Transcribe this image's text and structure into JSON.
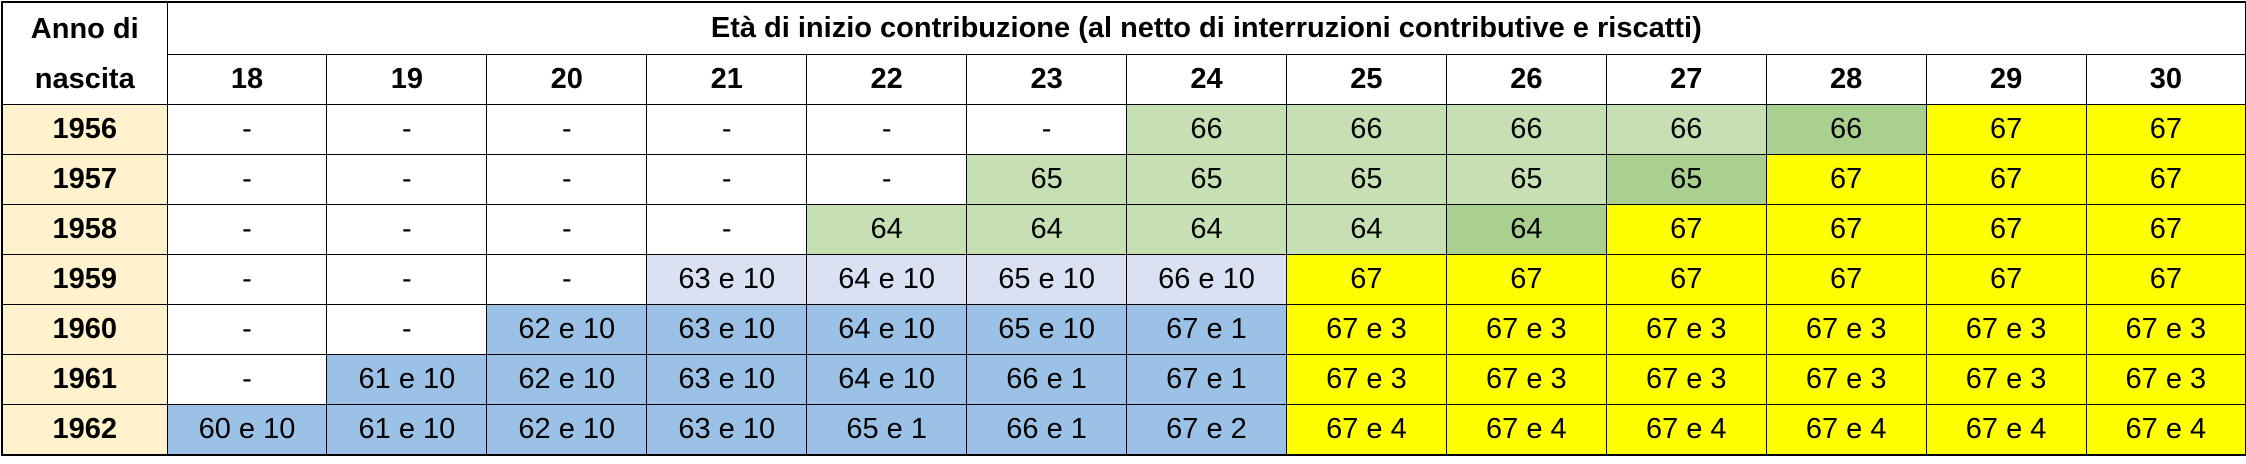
{
  "table": {
    "corner": "Anno di nascita",
    "title": "Età di inizio contribuzione (al netto di interruzioni contributive e riscatti)",
    "year_color": "#fff2cc",
    "ages": [
      "18",
      "19",
      "20",
      "21",
      "22",
      "23",
      "24",
      "25",
      "26",
      "27",
      "28",
      "29",
      "30"
    ],
    "rows": [
      {
        "year": "1956",
        "cells": [
          "-",
          "-",
          "-",
          "-",
          "-",
          "-",
          "66",
          "66",
          "66",
          "66",
          "66",
          "67",
          "67"
        ],
        "colors": [
          "#ffffff",
          "#ffffff",
          "#ffffff",
          "#ffffff",
          "#ffffff",
          "#ffffff",
          "#c6e0b4",
          "#c6e0b4",
          "#c6e0b4",
          "#c6e0b4",
          "#a9d08e",
          "#ffff00",
          "#ffff00"
        ]
      },
      {
        "year": "1957",
        "cells": [
          "-",
          "-",
          "-",
          "-",
          "-",
          "65",
          "65",
          "65",
          "65",
          "65",
          "67",
          "67",
          "67"
        ],
        "colors": [
          "#ffffff",
          "#ffffff",
          "#ffffff",
          "#ffffff",
          "#ffffff",
          "#c6e0b4",
          "#c6e0b4",
          "#c6e0b4",
          "#c6e0b4",
          "#a9d08e",
          "#ffff00",
          "#ffff00",
          "#ffff00"
        ]
      },
      {
        "year": "1958",
        "cells": [
          "-",
          "-",
          "-",
          "-",
          "64",
          "64",
          "64",
          "64",
          "64",
          "67",
          "67",
          "67",
          "67"
        ],
        "colors": [
          "#ffffff",
          "#ffffff",
          "#ffffff",
          "#ffffff",
          "#c6e0b4",
          "#c6e0b4",
          "#c6e0b4",
          "#c6e0b4",
          "#a9d08e",
          "#ffff00",
          "#ffff00",
          "#ffff00",
          "#ffff00"
        ]
      },
      {
        "year": "1959",
        "cells": [
          "-",
          "-",
          "-",
          "63 e 10",
          "64 e 10",
          "65 e 10",
          "66 e 10",
          "67",
          "67",
          "67",
          "67",
          "67",
          "67"
        ],
        "colors": [
          "#ffffff",
          "#ffffff",
          "#ffffff",
          "#d9e1f2",
          "#d9e1f2",
          "#d9e1f2",
          "#d9e1f2",
          "#ffff00",
          "#ffff00",
          "#ffff00",
          "#ffff00",
          "#ffff00",
          "#ffff00"
        ]
      },
      {
        "year": "1960",
        "cells": [
          "-",
          "-",
          "62 e 10",
          "63 e 10",
          "64 e 10",
          "65 e 10",
          "67 e 1",
          "67 e 3",
          "67 e 3",
          "67 e 3",
          "67 e 3",
          "67 e 3",
          "67 e 3"
        ],
        "colors": [
          "#ffffff",
          "#ffffff",
          "#9bc2e6",
          "#9bc2e6",
          "#9bc2e6",
          "#9bc2e6",
          "#9bc2e6",
          "#ffff00",
          "#ffff00",
          "#ffff00",
          "#ffff00",
          "#ffff00",
          "#ffff00"
        ]
      },
      {
        "year": "1961",
        "cells": [
          "-",
          "61 e 10",
          "62 e 10",
          "63 e 10",
          "64 e 10",
          "66 e 1",
          "67 e 1",
          "67 e 3",
          "67 e 3",
          "67 e 3",
          "67 e 3",
          "67 e 3",
          "67 e 3"
        ],
        "colors": [
          "#ffffff",
          "#9bc2e6",
          "#9bc2e6",
          "#9bc2e6",
          "#9bc2e6",
          "#9bc2e6",
          "#9bc2e6",
          "#ffff00",
          "#ffff00",
          "#ffff00",
          "#ffff00",
          "#ffff00",
          "#ffff00"
        ]
      },
      {
        "year": "1962",
        "cells": [
          "60 e 10",
          "61 e 10",
          "62 e 10",
          "63 e 10",
          "65 e 1",
          "66 e 1",
          "67 e 2",
          "67 e 4",
          "67 e 4",
          "67 e 4",
          "67 e 4",
          "67 e 4",
          "67 e 4"
        ],
        "colors": [
          "#9bc2e6",
          "#9bc2e6",
          "#9bc2e6",
          "#9bc2e6",
          "#9bc2e6",
          "#9bc2e6",
          "#9bc2e6",
          "#ffff00",
          "#ffff00",
          "#ffff00",
          "#ffff00",
          "#ffff00",
          "#ffff00"
        ]
      }
    ]
  }
}
